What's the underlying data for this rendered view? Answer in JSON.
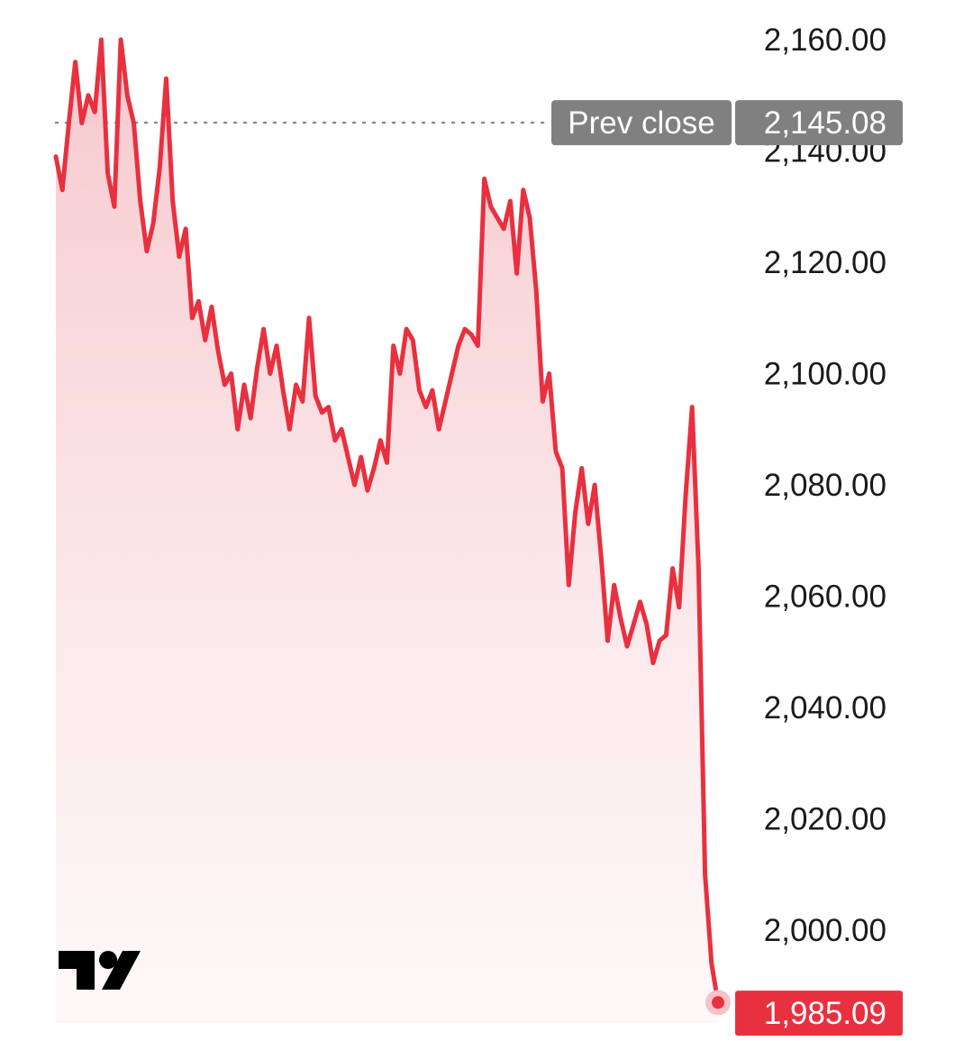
{
  "chart_data": {
    "type": "area",
    "title": "",
    "xlabel": "",
    "ylabel": "",
    "ylim": [
      1983,
      2166
    ],
    "y_ticks": [
      2160,
      2140,
      2120,
      2100,
      2080,
      2060,
      2040,
      2020,
      2000
    ],
    "y_tick_labels": [
      "2,160.00",
      "2,140.00",
      "2,120.00",
      "2,100.00",
      "2,080.00",
      "2,060.00",
      "2,040.00",
      "2,020.00",
      "2,000.00"
    ],
    "grid": false,
    "series": [
      {
        "values": [
          2139,
          2133,
          2145,
          2156,
          2145,
          2150,
          2147,
          2160,
          2136,
          2130,
          2160,
          2150,
          2145,
          2131,
          2122,
          2127,
          2137,
          2153,
          2131,
          2121,
          2126,
          2110,
          2113,
          2106,
          2112,
          2104,
          2098,
          2100,
          2090,
          2098,
          2092,
          2101,
          2108,
          2100,
          2105,
          2097,
          2090,
          2098,
          2095,
          2110,
          2096,
          2093,
          2094,
          2088,
          2090,
          2085,
          2080,
          2085,
          2079,
          2083,
          2088,
          2084,
          2105,
          2100,
          2108,
          2106,
          2097,
          2094,
          2097,
          2090,
          2095,
          2100,
          2105,
          2108,
          2107,
          2105,
          2135,
          2130,
          2128,
          2126,
          2131,
          2118,
          2133,
          2128,
          2115,
          2095,
          2100,
          2086,
          2083,
          2062,
          2075,
          2083,
          2073,
          2080,
          2067,
          2052,
          2062,
          2056,
          2051,
          2055,
          2059,
          2055,
          2048,
          2052,
          2053,
          2065,
          2058,
          2078,
          2094,
          2065,
          2010,
          1994,
          1987
        ],
        "color": "#e8303f"
      }
    ],
    "reference_line": {
      "label": "Prev close",
      "value": 2145.08,
      "value_label": "2,145.08"
    },
    "last_price": {
      "value": 1985.09,
      "value_label": "1,985.09"
    },
    "colors": {
      "line": "#e8303f",
      "fill_top": "#f6c8cd",
      "fill_bottom": "#fdf3f4",
      "prev_badge": "#808080",
      "price_badge": "#e8303f",
      "axis_text": "#1a1a1a",
      "dotted_line": "#8c8c8c"
    },
    "logo": {
      "icon": "tradingview-logo-icon",
      "text": "TV"
    }
  }
}
